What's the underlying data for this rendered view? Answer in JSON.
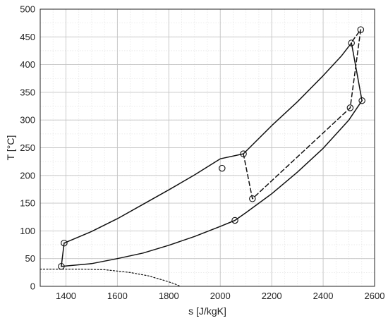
{
  "chart_data": {
    "type": "line",
    "title": "",
    "xlabel": "s [J/kgK]",
    "ylabel": "T [°C]",
    "xlim": [
      1300,
      2600
    ],
    "ylim": [
      0,
      500
    ],
    "xticks": [
      1400,
      1600,
      1800,
      2000,
      2200,
      2400,
      2600
    ],
    "yticks": [
      0,
      50,
      100,
      150,
      200,
      250,
      300,
      350,
      400,
      450,
      500
    ],
    "grid": {
      "major": true,
      "minor": true,
      "minor_x_step": 50,
      "minor_y_step": 25
    },
    "series": [
      {
        "style": "solid",
        "marker": "none",
        "x": [
          1393,
          1500,
          1600,
          1700,
          1800,
          1900,
          2000,
          2090,
          2200,
          2300,
          2400,
          2470,
          2510
        ],
        "y": [
          78,
          99,
          122,
          148,
          174,
          201,
          230,
          239,
          290,
          333,
          380,
          415,
          439
        ]
      },
      {
        "style": "solid",
        "marker": "none",
        "x": [
          1382,
          1393
        ],
        "y": [
          36,
          78
        ]
      },
      {
        "style": "solid",
        "marker": "none",
        "x": [
          2510,
          2551
        ],
        "y": [
          439,
          335
        ]
      },
      {
        "style": "solid",
        "marker": "none",
        "x": [
          1382,
          1500,
          1600,
          1700,
          1800,
          1900,
          2000,
          2057,
          2100,
          2200,
          2300,
          2400,
          2500,
          2551
        ],
        "y": [
          36,
          41,
          50,
          60,
          74,
          90,
          108,
          119,
          133,
          167,
          206,
          249,
          300,
          335
        ]
      },
      {
        "style": "dashed",
        "marker": "none",
        "x": [
          2090,
          2125,
          2505,
          2546,
          2508
        ],
        "y": [
          239,
          158,
          322,
          463,
          439
        ]
      },
      {
        "style": "dotted",
        "marker": "none",
        "x": [
          1300,
          1450,
          1550,
          1650,
          1720,
          1780,
          1820,
          1845
        ],
        "y": [
          31,
          31,
          30,
          25,
          19,
          11,
          5,
          0
        ]
      },
      {
        "style": "none",
        "marker": "circle",
        "x": [
          1382,
          1393,
          2007,
          2090,
          2057,
          2125,
          2505,
          2510,
          2551,
          2546
        ],
        "y": [
          36,
          78,
          213,
          239,
          119,
          158,
          322,
          439,
          335,
          463
        ]
      }
    ]
  }
}
